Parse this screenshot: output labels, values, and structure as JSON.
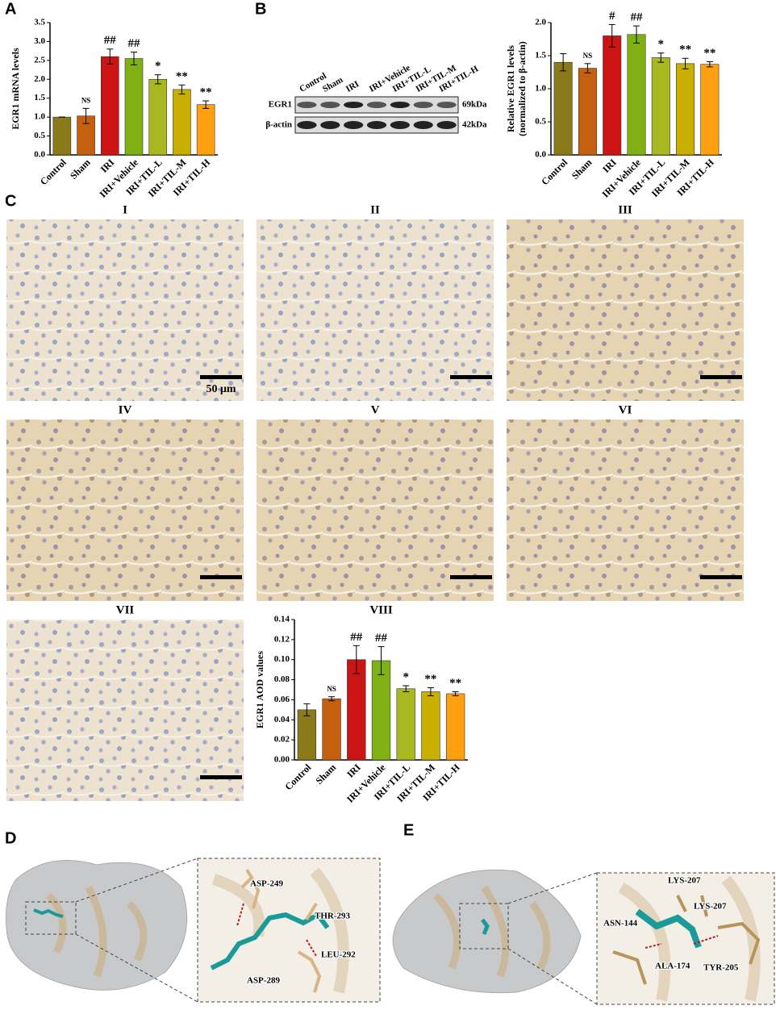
{
  "panel_labels": [
    "A",
    "B",
    "C",
    "D",
    "E"
  ],
  "chart_data": [
    {
      "type": "bar",
      "y_label": [
        "EGR1 mRNA levels"
      ],
      "categories": [
        "Control",
        "Sham",
        "IRI",
        "IRI+Vehicle",
        "IRI+TIL-L",
        "IRI+TIL-M",
        "IRI+TIL-H"
      ],
      "values": [
        1.0,
        1.03,
        2.6,
        2.55,
        2.0,
        1.73,
        1.33
      ],
      "errors": [
        0.0,
        0.2,
        0.2,
        0.17,
        0.12,
        0.12,
        0.1
      ],
      "annotations": [
        null,
        "NS",
        "##",
        "##",
        "*",
        "**",
        "**"
      ],
      "colors": [
        "#8b7a1a",
        "#c4600f",
        "#cc1414",
        "#7fb014",
        "#a9b820",
        "#c9b000",
        "#ffa010"
      ],
      "ylim": [
        0,
        3.5
      ],
      "yticks": [
        {
          "value": 0,
          "label": "0.0"
        },
        0.5,
        {
          "value": 1,
          "label": "1.0"
        },
        1.5,
        {
          "value": 2,
          "label": "2.0"
        },
        2.5,
        {
          "value": 3,
          "label": "3.0"
        },
        3.5
      ]
    },
    {
      "type": "bar",
      "y_label": [
        "Relative EGR1 levels",
        "(normalized to β-actin)"
      ],
      "categories": [
        "Control",
        "Sham",
        "IRI",
        "IRI+Vehicle",
        "IRI+TIL-L",
        "IRI+TIL-M",
        "IRI+TIL-H"
      ],
      "values": [
        1.4,
        1.31,
        1.8,
        1.82,
        1.47,
        1.38,
        1.37
      ],
      "errors": [
        0.13,
        0.07,
        0.17,
        0.13,
        0.07,
        0.08,
        0.04
      ],
      "annotations": [
        null,
        "NS",
        "#",
        "##",
        "*",
        "**",
        "**"
      ],
      "colors": [
        "#8b7a1a",
        "#c4600f",
        "#cc1414",
        "#7fb014",
        "#a9b820",
        "#c9b000",
        "#ffa010"
      ],
      "ylim": [
        0,
        2.0
      ],
      "yticks": [
        {
          "value": 0,
          "label": "0.0"
        },
        0.5,
        {
          "value": 1,
          "label": "1.0"
        },
        1.5,
        {
          "value": 2,
          "label": "2.0"
        }
      ]
    },
    {
      "type": "bar",
      "title": "VIII",
      "y_label": [
        "EGR1 AOD values"
      ],
      "categories": [
        "Control",
        "Sham",
        "IRI",
        "IRI+Vehicle",
        "IRI+TIL-L",
        "IRI+TIL-M",
        "IRI+TIL-H"
      ],
      "values": [
        0.05,
        0.061,
        0.1,
        0.099,
        0.071,
        0.068,
        0.066
      ],
      "errors": [
        0.006,
        0.002,
        0.014,
        0.014,
        0.003,
        0.004,
        0.002
      ],
      "annotations": [
        null,
        "NS",
        "##",
        "##",
        "*",
        "**",
        "**"
      ],
      "colors": [
        "#8b7a1a",
        "#c4600f",
        "#cc1414",
        "#7fb014",
        "#a9b820",
        "#c9b000",
        "#ffa010"
      ],
      "ylim": [
        0,
        0.14
      ],
      "yticks": [
        {
          "value": 0,
          "label": "0.00"
        },
        {
          "value": 0.02,
          "label": "0.02"
        },
        {
          "value": 0.04,
          "label": "0.04"
        },
        {
          "value": 0.06,
          "label": "0.06"
        },
        {
          "value": 0.08,
          "label": "0.08"
        },
        {
          "value": 0.1,
          "label": "0.10"
        },
        {
          "value": 0.12,
          "label": "0.12"
        },
        {
          "value": 0.14,
          "label": "0.14"
        }
      ]
    }
  ],
  "blot": {
    "lanes": [
      "Control",
      "Sham",
      "IRI",
      "IRI+Vehicle",
      "IRI+TIL-L",
      "IRI+TIL-M",
      "IRI+TIL-H"
    ],
    "rows": [
      "EGR1",
      "β-actin"
    ],
    "sizes": [
      "69kDa",
      "42kDa"
    ]
  },
  "micrographs": {
    "labels": [
      "I",
      "II",
      "III",
      "IV",
      "V",
      "VI",
      "VII"
    ],
    "scale_label": "50 μm"
  },
  "docking": [
    {
      "residues": [
        "ASP-249",
        "THR-293",
        "LEU-292",
        "ASP-289"
      ]
    },
    {
      "residues": [
        "LYS-207",
        "LYS-207",
        "ASN-144",
        "ALA-174",
        "TYR-205"
      ]
    }
  ]
}
